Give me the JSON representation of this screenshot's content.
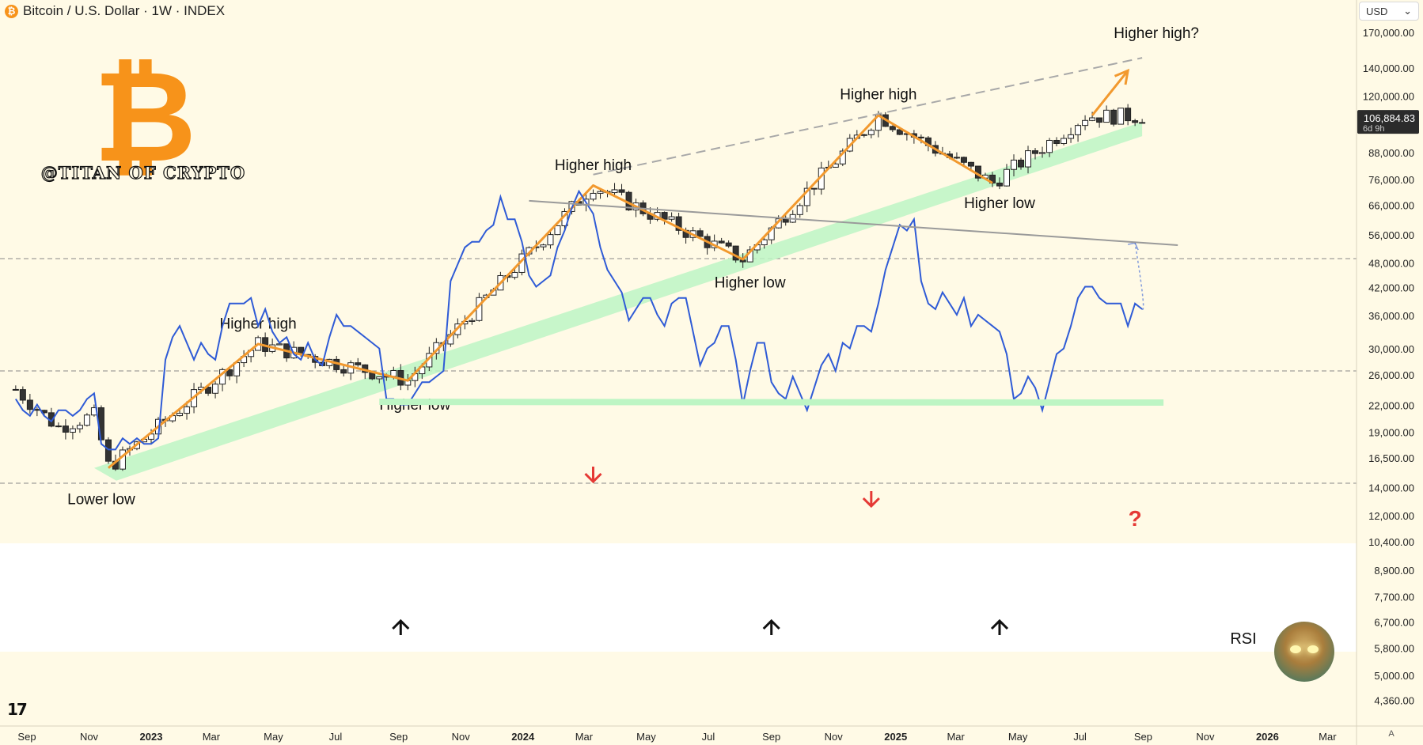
{
  "header": {
    "coin_icon": "bitcoin-icon",
    "title": "Bitcoin / U.S. Dollar · 1W · INDEX"
  },
  "currency_selector": {
    "value": "USD"
  },
  "watermark": {
    "logo_icon": "bitcoin-logo",
    "text": "@TITAN OF CRYPTO"
  },
  "colors": {
    "background": "#fffae6",
    "rsi_panel_bg": "#ffffff",
    "bull_candle": "#ffffff",
    "bear_candle": "#333333",
    "structure_line": "#f2992e",
    "support_band": "#bdf5c4",
    "rsi_line": "#2f5bd6",
    "resistance_line": "#a8a8a8",
    "red_marker": "#e53935",
    "black_marker": "#111111"
  },
  "chart_data": {
    "type": "candlestick",
    "instrument": "Bitcoin / U.S. Dollar",
    "interval": "1W",
    "y_scale": "log",
    "y_axis_ticks": [
      "170,000.00",
      "140,000.00",
      "120,000.00",
      "88,000.00",
      "76,000.00",
      "66,000.00",
      "56,000.00",
      "48,000.00",
      "42,000.00",
      "36,000.00",
      "30,000.00",
      "26,000.00",
      "22,000.00",
      "19,000.00",
      "16,500.00",
      "14,000.00",
      "12,000.00",
      "10,400.00",
      "8,900.00",
      "7,700.00",
      "6,700.00",
      "5,800.00",
      "5,000.00",
      "4,360.00"
    ],
    "x_axis_ticks": [
      "Sep",
      "Nov",
      "2023",
      "Mar",
      "May",
      "Jul",
      "Sep",
      "Nov",
      "2024",
      "Mar",
      "May",
      "Jul",
      "Sep",
      "Nov",
      "2025",
      "Mar",
      "May",
      "Jul",
      "Sep",
      "Nov",
      "2026",
      "Mar"
    ],
    "bold_x_ticks": [
      "2023",
      "2024",
      "2025",
      "2026"
    ],
    "current_price": {
      "value": "106,884.83",
      "countdown": "6d 9h"
    },
    "structure_points": [
      {
        "date": "2022-11-20",
        "price": 15600
      },
      {
        "date": "2023-04-16",
        "price": 30800
      },
      {
        "date": "2023-09-10",
        "price": 25200
      },
      {
        "date": "2024-03-10",
        "price": 73500
      },
      {
        "date": "2024-08-04",
        "price": 49000
      },
      {
        "date": "2024-12-15",
        "price": 108000
      },
      {
        "date": "2025-04-06",
        "price": 74500
      },
      {
        "date": "2025-08-10",
        "price": 145000
      }
    ],
    "annotations": [
      {
        "text": "Lower low",
        "date": "2022-11-13",
        "price": 12800
      },
      {
        "text": "Higher high",
        "date": "2023-04-16",
        "price": 33500
      },
      {
        "text": "Higher low",
        "date": "2023-09-17",
        "price": 21500
      },
      {
        "text": "Higher high",
        "date": "2024-03-10",
        "price": 80000
      },
      {
        "text": "Higher low",
        "date": "2024-08-11",
        "price": 42000
      },
      {
        "text": "Higher high",
        "date": "2024-12-15",
        "price": 118000
      },
      {
        "text": "Higher low",
        "date": "2025-04-13",
        "price": 65000
      },
      {
        "text": "Higher high?",
        "date": "2025-09-14",
        "price": 165000
      }
    ],
    "resistance_trendline": [
      {
        "date": "2024-03-10",
        "price": 78000
      },
      {
        "date": "2025-08-31",
        "price": 148000
      }
    ],
    "support_band": [
      {
        "date": "2022-11-06",
        "price": 15600
      },
      {
        "date": "2025-08-31",
        "price": 98000
      }
    ],
    "projection_arrow": [
      {
        "date": "2025-07-13",
        "price": 108000
      },
      {
        "date": "2025-08-17",
        "price": 138000
      }
    ],
    "rsi": {
      "label": "RSI",
      "values": [
        45,
        43,
        42,
        44,
        42,
        41,
        43,
        43,
        42,
        43,
        45,
        46,
        37,
        36,
        36,
        38,
        37,
        38,
        37,
        37,
        38,
        52,
        56,
        58,
        55,
        52,
        55,
        53,
        52,
        58,
        62,
        62,
        62,
        63,
        58,
        61,
        57,
        55,
        56,
        53,
        52,
        55,
        52,
        51,
        56,
        60,
        58,
        58,
        57,
        56,
        55,
        54,
        45,
        45,
        44,
        44,
        46,
        48,
        48,
        49,
        50,
        66,
        69,
        72,
        73,
        73,
        75,
        76,
        81,
        77,
        77,
        73,
        67,
        65,
        66,
        67,
        72,
        75,
        79,
        82,
        80,
        78,
        72,
        68,
        66,
        64,
        59,
        61,
        63,
        63,
        60,
        58,
        62,
        63,
        63,
        57,
        51,
        54,
        55,
        58,
        58,
        52,
        44,
        50,
        55,
        55,
        48,
        46,
        45,
        49,
        46,
        43,
        47,
        51,
        53,
        50,
        55,
        54,
        58,
        58,
        57,
        62,
        68,
        72,
        76,
        75,
        77,
        66,
        62,
        61,
        64,
        62,
        60,
        63,
        58,
        60,
        59,
        58,
        57,
        53,
        45,
        46,
        49,
        47,
        43,
        48,
        53,
        54,
        58,
        63,
        65,
        65,
        63,
        62,
        62,
        62,
        58,
        62,
        61
      ],
      "guide_levels": [
        70,
        50,
        30
      ],
      "support_value": 44.5,
      "resistance_start_value": 80.3,
      "resistance_end_value": 72.4,
      "projection_target": 72.8,
      "markers": [
        {
          "type": "down-arrow",
          "color": "red",
          "date": "2024-03-10"
        },
        {
          "type": "down-arrow",
          "color": "red",
          "date": "2024-12-08"
        },
        {
          "type": "up-arrow",
          "color": "black",
          "date": "2023-09-03"
        },
        {
          "type": "up-arrow",
          "color": "black",
          "date": "2024-09-01"
        },
        {
          "type": "up-arrow",
          "color": "black",
          "date": "2025-04-13"
        },
        {
          "type": "question-mark",
          "text": "?",
          "date": "2025-08-24"
        }
      ]
    }
  },
  "footer": {
    "logo": "tradingview-logo",
    "scale_button": "A"
  }
}
